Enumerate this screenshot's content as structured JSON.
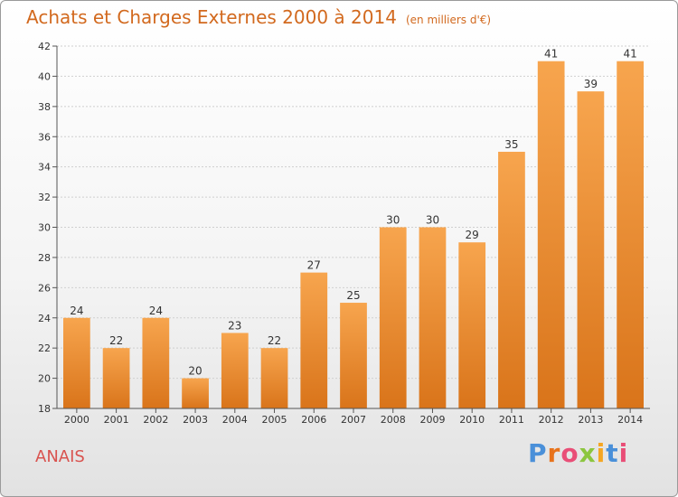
{
  "header": {
    "title": "Achats et Charges Externes 2000 à 2014",
    "unit": "(en milliers d'€)"
  },
  "footer": {
    "location": "ANAIS",
    "brand": "Proxiti",
    "brand_colors": [
      "#4a90d9",
      "#e8731c",
      "#e94e77",
      "#8cc63f",
      "#f5a623",
      "#4a90d9",
      "#e94e77"
    ]
  },
  "colors": {
    "bar_light": "#f7a54e",
    "bar_dark": "#d9741a",
    "title": "#d2691e",
    "location": "#d9534f"
  },
  "chart_data": {
    "type": "bar",
    "title": "Achats et Charges Externes 2000 à 2014",
    "subtitle": "(en milliers d'€)",
    "categories": [
      "2000",
      "2001",
      "2002",
      "2003",
      "2004",
      "2005",
      "2006",
      "2007",
      "2008",
      "2009",
      "2010",
      "2011",
      "2012",
      "2013",
      "2014"
    ],
    "values": [
      24,
      22,
      24,
      20,
      23,
      22,
      27,
      25,
      30,
      30,
      29,
      35,
      41,
      39,
      41
    ],
    "ylim": [
      18,
      42
    ],
    "yticks": [
      18,
      20,
      22,
      24,
      26,
      28,
      30,
      32,
      34,
      36,
      38,
      40,
      42
    ],
    "grid": true,
    "data_labels": true
  }
}
